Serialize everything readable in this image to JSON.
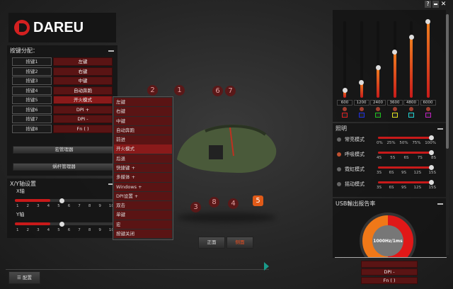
{
  "brand": "DAREU",
  "window_controls": {
    "help": "?"
  },
  "key_assign": {
    "title": "按键分配：",
    "rows": [
      {
        "key": "按键1",
        "value": "左键"
      },
      {
        "key": "按键2",
        "value": "右键"
      },
      {
        "key": "按键3",
        "value": "中键"
      },
      {
        "key": "按键4",
        "value": "自动奔跑"
      },
      {
        "key": "按键5",
        "value": "开火模式",
        "selected": true
      },
      {
        "key": "按键6",
        "value": "DPI +"
      },
      {
        "key": "按键7",
        "value": "DPI -"
      },
      {
        "key": "按键8",
        "value": "Fn ( )"
      }
    ],
    "macro_manager": "宏管理器",
    "worm_manager": "蜗杆管理器"
  },
  "dropdown": [
    "左键",
    "右键",
    "中键",
    "自动奔跑",
    "前进",
    "开火模式",
    "后退",
    "快捷键 +",
    "多媒体 +",
    "Windows +",
    "DPI设置 +",
    "双击",
    "单键",
    "宏",
    "按键关闭"
  ],
  "dropdown_selected": "开火模式",
  "xy": {
    "title": "X/Y轴设置",
    "x_label": "X轴",
    "y_label": "Y轴",
    "ticks": [
      "1",
      "2",
      "3",
      "4",
      "5",
      "6",
      "7",
      "8",
      "9",
      "10"
    ],
    "x_value": 5,
    "y_value": 5
  },
  "mouse_labels": [
    "2",
    "1",
    "6",
    "7",
    "3",
    "8",
    "4",
    "5"
  ],
  "view": {
    "front": "正面",
    "side": "侧面",
    "active": "side"
  },
  "config_button": "配置",
  "dpi": {
    "levels": [
      {
        "label": "600",
        "value": 600,
        "color": "#e02020"
      },
      {
        "label": "1200",
        "value": 1200,
        "color": "#2030e0"
      },
      {
        "label": "2400",
        "value": 2400,
        "color": "#20c020"
      },
      {
        "label": "3600",
        "value": 3600,
        "color": "#e0e020"
      },
      {
        "label": "4800",
        "value": 4800,
        "color": "#20d0d0"
      },
      {
        "label": "6000",
        "value": 6000,
        "color": "#c020c0"
      }
    ],
    "max": 6000
  },
  "lighting": {
    "title": "照明",
    "modes": [
      {
        "label": "常亮模式",
        "ticks": [
          "0%",
          "25%",
          "50%",
          "75%",
          "100%"
        ],
        "level": 1.0,
        "active": false
      },
      {
        "label": "呼吸模式",
        "ticks": [
          "4S",
          "5S",
          "6S",
          "7S",
          "8S"
        ],
        "level": 1.0,
        "active": true
      },
      {
        "label": "霓虹模式",
        "ticks": [
          "3S",
          "6S",
          "9S",
          "12S",
          "15S"
        ],
        "level": 1.0,
        "active": false
      },
      {
        "label": "摇动模式",
        "ticks": [
          "3S",
          "6S",
          "9S",
          "12S",
          "15S"
        ],
        "level": 1.0,
        "active": false
      }
    ]
  },
  "usb": {
    "title": "USB輸出报告率",
    "value": "1000Hz/1ms"
  },
  "bottom_right": [
    "DPI -",
    "Fn ( )"
  ],
  "colors": {
    "accent": "#c81a1a",
    "orange": "#f07020"
  }
}
